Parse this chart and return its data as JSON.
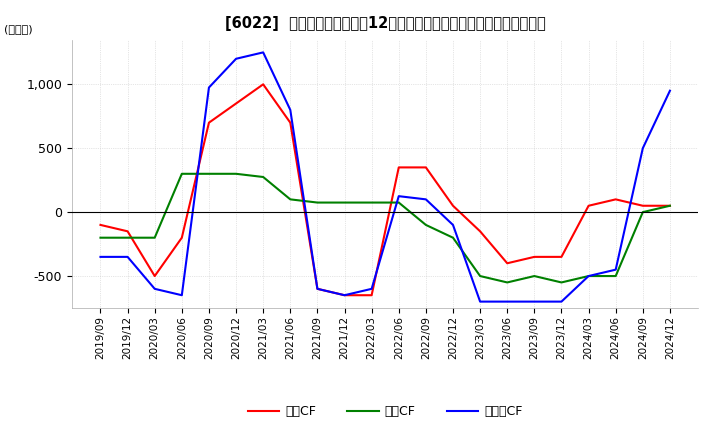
{
  "title": "[6022]  キャッシュフローの12か月移動合計の対前年同期増減額の推移",
  "ylabel": "(百万円)",
  "ylim": [
    -750,
    1350
  ],
  "yticks": [
    -500,
    0,
    500,
    1000
  ],
  "legend_labels": [
    "営業CF",
    "投資CF",
    "フリーCF"
  ],
  "line_colors": [
    "#ff0000",
    "#008000",
    "#0000ff"
  ],
  "x_labels": [
    "2019/09",
    "2019/12",
    "2020/03",
    "2020/06",
    "2020/09",
    "2020/12",
    "2021/03",
    "2021/06",
    "2021/09",
    "2021/12",
    "2022/03",
    "2022/06",
    "2022/09",
    "2022/12",
    "2023/03",
    "2023/06",
    "2023/09",
    "2023/12",
    "2024/03",
    "2024/06",
    "2024/09",
    "2024/12"
  ],
  "operating_cf": [
    -100,
    -150,
    -500,
    -200,
    700,
    850,
    1000,
    700,
    -600,
    -650,
    -650,
    350,
    350,
    50,
    -150,
    -400,
    -350,
    -350,
    50,
    100,
    50,
    50
  ],
  "investing_cf": [
    -200,
    -200,
    -200,
    300,
    300,
    300,
    275,
    100,
    75,
    75,
    75,
    75,
    -100,
    -200,
    -500,
    -550,
    -500,
    -550,
    -500,
    -500,
    0,
    50
  ],
  "free_cf": [
    -350,
    -350,
    -600,
    -650,
    975,
    1200,
    1250,
    800,
    -600,
    -650,
    -600,
    125,
    100,
    -100,
    -700,
    -700,
    -700,
    -700,
    -500,
    -450,
    500,
    950
  ],
  "background_color": "#ffffff",
  "grid_color": "#cccccc",
  "title_fontsize": 11,
  "axis_fontsize": 8
}
